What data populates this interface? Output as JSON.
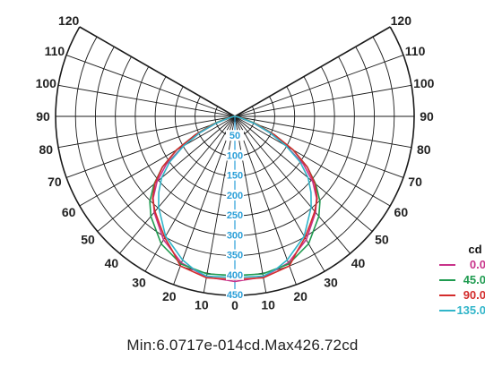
{
  "chart_data": {
    "type": "polar-line",
    "title": "",
    "unit": "cd",
    "angle_labels_left": [
      "120",
      "110",
      "100",
      "90",
      "80",
      "70",
      "60",
      "50",
      "40",
      "30",
      "20",
      "10"
    ],
    "angle_labels_right": [
      "120",
      "110",
      "100",
      "90",
      "80",
      "70",
      "60",
      "50",
      "40",
      "30",
      "20",
      "10"
    ],
    "angle_label_values": [
      120,
      110,
      100,
      90,
      80,
      70,
      60,
      50,
      40,
      30,
      20,
      10
    ],
    "angle_zero_label": "0",
    "radial_labels": [
      "50",
      "100",
      "150",
      "200",
      "250",
      "300",
      "350",
      "400",
      "450"
    ],
    "radial_label_values": [
      50,
      100,
      150,
      200,
      250,
      300,
      350,
      400,
      450
    ],
    "r_max": 450,
    "angle_max": 120,
    "series": [
      {
        "name": "0.0",
        "color": "#c8338a",
        "points": [
          [
            0,
            415
          ],
          [
            10,
            410
          ],
          [
            20,
            392
          ],
          [
            30,
            358
          ],
          [
            40,
            315
          ],
          [
            45,
            290
          ],
          [
            50,
            255
          ],
          [
            55,
            210
          ],
          [
            60,
            150
          ],
          [
            65,
            95
          ],
          [
            70,
            50
          ],
          [
            75,
            20
          ],
          [
            80,
            6
          ],
          [
            90,
            0
          ]
        ]
      },
      {
        "name": "45.0",
        "color": "#1f9b50",
        "points": [
          [
            0,
            400
          ],
          [
            10,
            402
          ],
          [
            20,
            395
          ],
          [
            30,
            370
          ],
          [
            40,
            328
          ],
          [
            45,
            302
          ],
          [
            50,
            265
          ],
          [
            55,
            222
          ],
          [
            60,
            168
          ],
          [
            65,
            110
          ],
          [
            70,
            62
          ],
          [
            75,
            26
          ],
          [
            80,
            8
          ],
          [
            90,
            0
          ]
        ]
      },
      {
        "name": "90.0",
        "color": "#d32c2c",
        "points": [
          [
            0,
            410
          ],
          [
            10,
            412
          ],
          [
            20,
            400
          ],
          [
            25,
            372
          ],
          [
            30,
            352
          ],
          [
            35,
            330
          ],
          [
            40,
            312
          ],
          [
            45,
            292
          ],
          [
            50,
            262
          ],
          [
            55,
            222
          ],
          [
            60,
            170
          ],
          [
            65,
            110
          ],
          [
            70,
            58
          ],
          [
            75,
            22
          ],
          [
            80,
            7
          ],
          [
            90,
            0
          ]
        ]
      },
      {
        "name": "135.0",
        "color": "#31b5c9",
        "points": [
          [
            0,
            405
          ],
          [
            10,
            408
          ],
          [
            15,
            398
          ],
          [
            20,
            384
          ],
          [
            30,
            348
          ],
          [
            40,
            298
          ],
          [
            45,
            270
          ],
          [
            50,
            240
          ],
          [
            55,
            200
          ],
          [
            60,
            148
          ],
          [
            65,
            96
          ],
          [
            70,
            50
          ],
          [
            75,
            18
          ],
          [
            80,
            5
          ],
          [
            90,
            0
          ]
        ]
      }
    ],
    "legend": {
      "position": "right",
      "title": "cd"
    },
    "caption": "Min:6.0717e-014cd.Max426.72cd"
  }
}
